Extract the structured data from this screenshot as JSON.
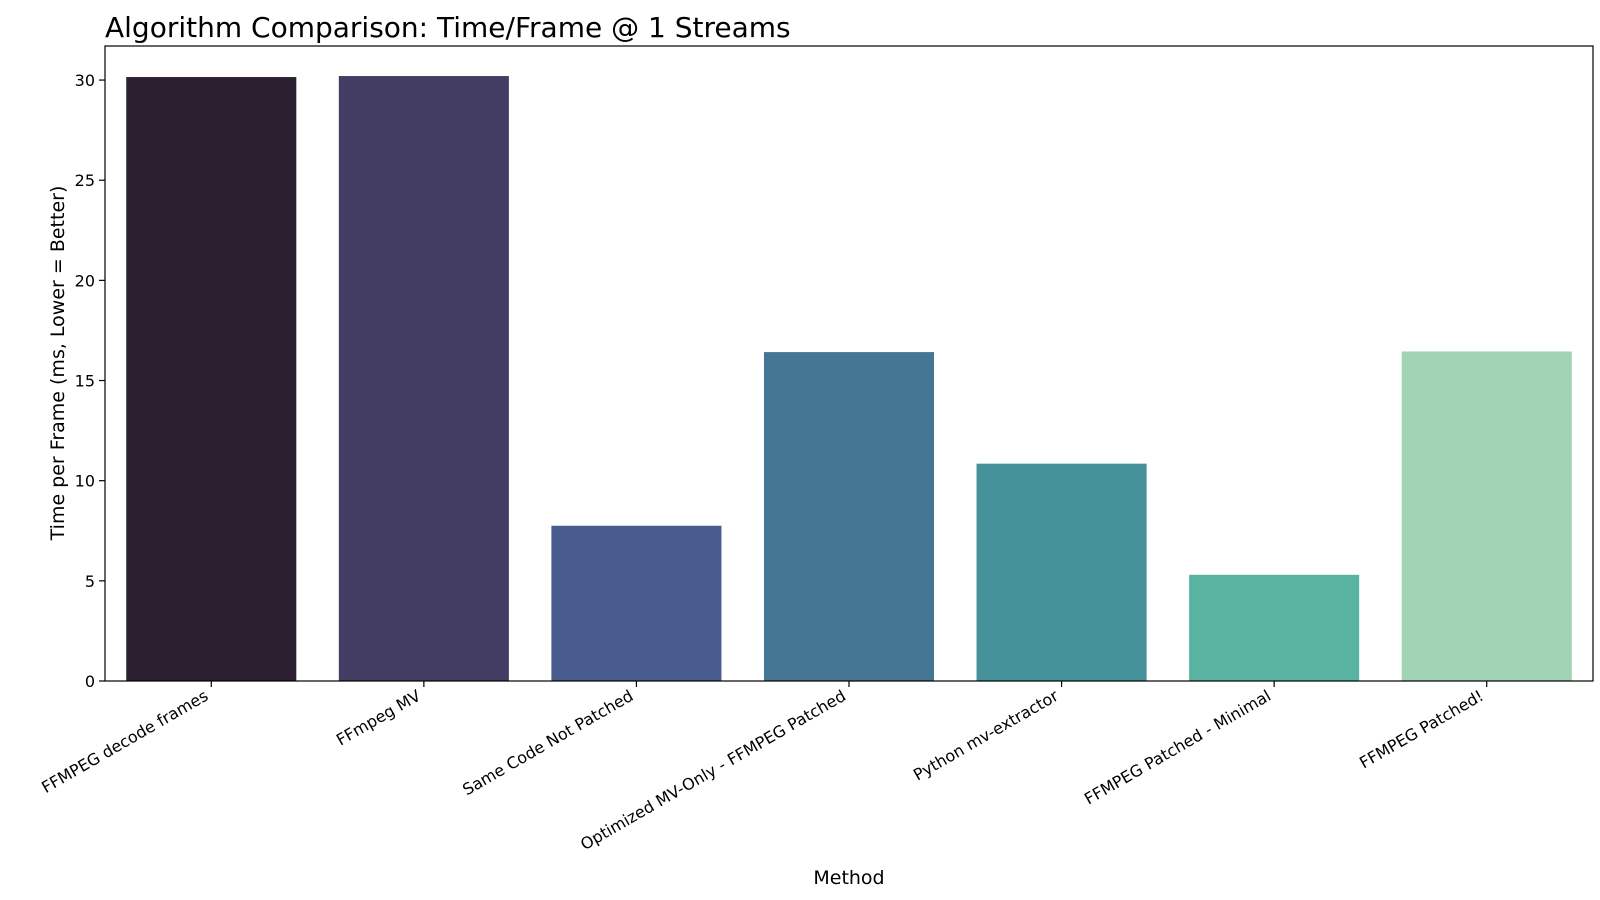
{
  "chart_data": {
    "type": "bar",
    "title": "Algorithm Comparison: Time/Frame @ 1 Streams",
    "xlabel": "Method",
    "ylabel": "Time per Frame (ms, Lower = Better)",
    "categories": [
      "FFMPEG decode frames",
      "FFmpeg MV",
      "Same Code Not Patched",
      "Optimized MV-Only - FFMPEG Patched",
      "Python mv-extractor",
      "FFMPEG Patched - Minimal",
      "FFMPEG Patched!"
    ],
    "values": [
      30.15,
      30.2,
      7.75,
      16.42,
      10.85,
      5.3,
      16.45
    ],
    "colors": [
      "#2b1f30",
      "#433c63",
      "#485c8d",
      "#457795",
      "#46929b",
      "#59b3a1",
      "#a1d3b5"
    ],
    "ylim": [
      0,
      31.7
    ],
    "yticks": [
      0,
      5,
      10,
      15,
      20,
      25,
      30
    ],
    "grid": false,
    "legend": "none"
  }
}
